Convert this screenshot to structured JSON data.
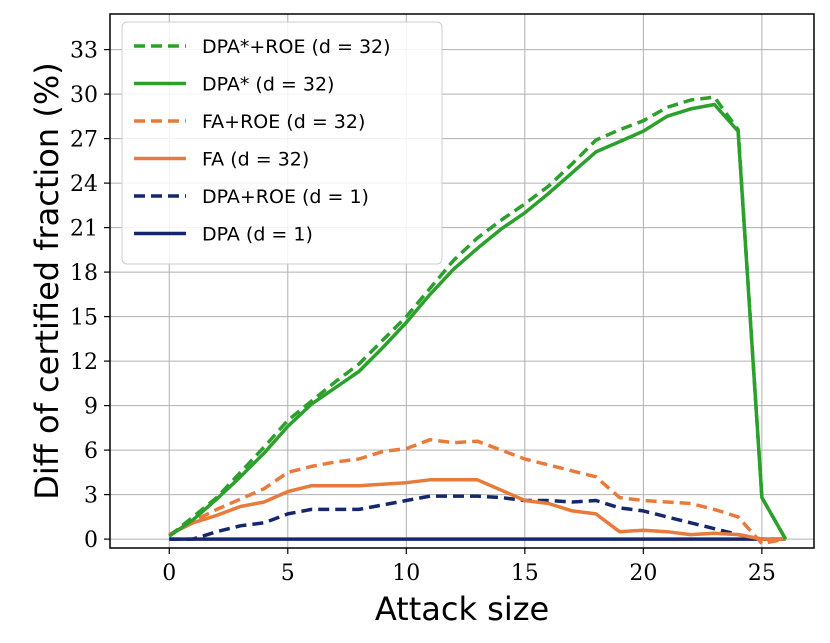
{
  "chart_data": {
    "type": "line",
    "title": "",
    "xlabel": "Attack size",
    "ylabel": "Diff of certified fraction (%)",
    "xlim": [
      -2.5,
      27.2
    ],
    "ylim": [
      -0.6,
      35.4
    ],
    "xticks": [
      0,
      5,
      10,
      15,
      20,
      25
    ],
    "yticks": [
      0,
      3,
      6,
      9,
      12,
      15,
      18,
      21,
      24,
      27,
      30,
      33
    ],
    "grid": true,
    "legend_position": "top-left",
    "x": [
      0,
      1,
      2,
      3,
      4,
      5,
      6,
      7,
      8,
      9,
      10,
      11,
      12,
      13,
      14,
      15,
      16,
      17,
      18,
      19,
      20,
      21,
      22,
      23,
      24,
      25,
      26
    ],
    "series": [
      {
        "name": "DPA*+ROE (d = 32)",
        "color": "#2ca02c",
        "dash": true,
        "values": [
          0.2,
          1.5,
          2.8,
          4.5,
          6.2,
          8.0,
          9.3,
          10.6,
          11.8,
          13.4,
          15.0,
          16.9,
          18.8,
          20.3,
          21.5,
          22.6,
          23.8,
          25.3,
          26.9,
          27.6,
          28.2,
          29.1,
          29.6,
          29.8,
          27.6,
          2.8,
          0.0
        ]
      },
      {
        "name": "DPA* (d = 32)",
        "color": "#2ca02c",
        "dash": false,
        "values": [
          0.2,
          1.3,
          2.7,
          4.2,
          5.8,
          7.6,
          9.1,
          10.2,
          11.3,
          12.9,
          14.6,
          16.5,
          18.2,
          19.6,
          20.9,
          22.0,
          23.3,
          24.7,
          26.1,
          26.8,
          27.5,
          28.5,
          29.0,
          29.3,
          27.5,
          2.8,
          0.0
        ]
      },
      {
        "name": "FA+ROE (d = 32)",
        "color": "#e87b3b",
        "dash": true,
        "values": [
          0.3,
          1.2,
          2.0,
          2.7,
          3.4,
          4.5,
          4.9,
          5.2,
          5.4,
          5.9,
          6.1,
          6.7,
          6.5,
          6.6,
          6.0,
          5.4,
          5.0,
          4.6,
          4.2,
          2.8,
          2.6,
          2.5,
          2.4,
          2.0,
          1.5,
          -0.3,
          0.0
        ]
      },
      {
        "name": "FA (d = 32)",
        "color": "#e87b3b",
        "dash": false,
        "values": [
          0.3,
          1.1,
          1.6,
          2.2,
          2.5,
          3.2,
          3.6,
          3.6,
          3.6,
          3.7,
          3.8,
          4.0,
          4.0,
          4.0,
          3.3,
          2.6,
          2.4,
          1.9,
          1.7,
          0.5,
          0.6,
          0.5,
          0.3,
          0.4,
          0.3,
          0.0,
          0.0
        ]
      },
      {
        "name": "DPA+ROE (d = 1)",
        "color": "#15286e",
        "dash": true,
        "values": [
          0.0,
          0.0,
          0.5,
          0.9,
          1.1,
          1.7,
          2.0,
          2.0,
          2.0,
          2.3,
          2.6,
          2.9,
          2.9,
          2.9,
          2.8,
          2.6,
          2.6,
          2.5,
          2.6,
          2.1,
          1.9,
          1.5,
          1.1,
          0.7,
          0.3,
          0.0,
          0.0
        ]
      },
      {
        "name": "DPA (d = 1)",
        "color": "#15286e",
        "dash": false,
        "values": [
          0,
          0,
          0,
          0,
          0,
          0,
          0,
          0,
          0,
          0,
          0,
          0,
          0,
          0,
          0,
          0,
          0,
          0,
          0,
          0,
          0,
          0,
          0,
          0,
          0,
          0,
          0
        ]
      }
    ]
  }
}
